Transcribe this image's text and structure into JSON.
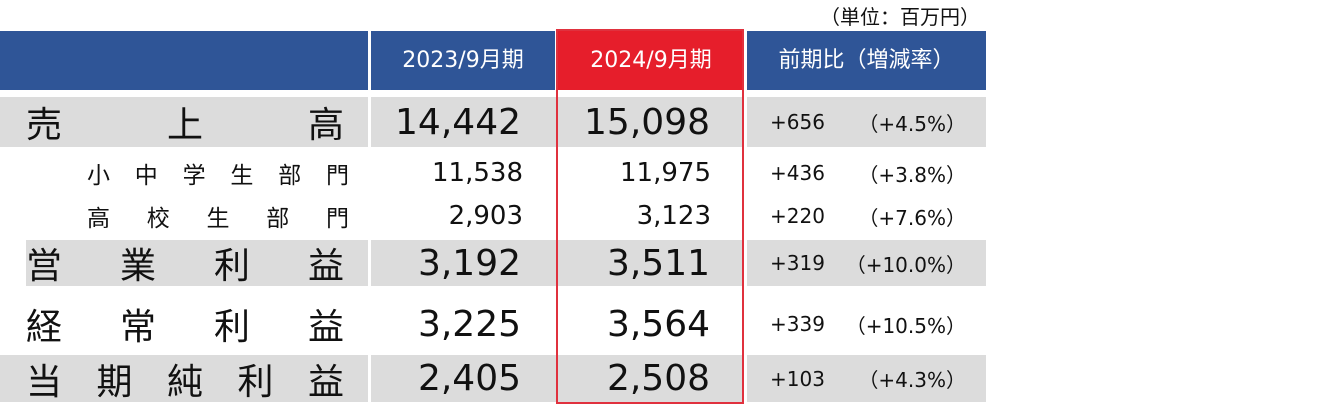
{
  "unit_note": "（単位：百万円）",
  "header": {
    "label_col": "",
    "prev": "2023/9月期",
    "curr": "2024/9月期",
    "change": "前期比（増減率）"
  },
  "rows": [
    {
      "label": "売上高",
      "prev": "14,442",
      "curr": "15,098",
      "diff": "+656",
      "rate": "（+4.5%）"
    },
    {
      "label": "小中学生部門",
      "prev": "11,538",
      "curr": "11,975",
      "diff": "+436",
      "rate": "（+3.8%）"
    },
    {
      "label": "高校生部門",
      "prev": "2,903",
      "curr": "3,123",
      "diff": "+220",
      "rate": "（+7.6%）"
    },
    {
      "label": "営業利益",
      "prev": "3,192",
      "curr": "3,511",
      "diff": "+319",
      "rate": "（+10.0%）"
    },
    {
      "label": "経常利益",
      "prev": "3,225",
      "curr": "3,564",
      "diff": "+339",
      "rate": "（+10.5%）"
    },
    {
      "label": "当期純利益",
      "prev": "2,405",
      "curr": "2,508",
      "diff": "+103",
      "rate": "（+4.3%）"
    }
  ],
  "colors": {
    "header": "#2f5597",
    "highlight": "#e61e2b",
    "shade": "#dcdcdc"
  }
}
